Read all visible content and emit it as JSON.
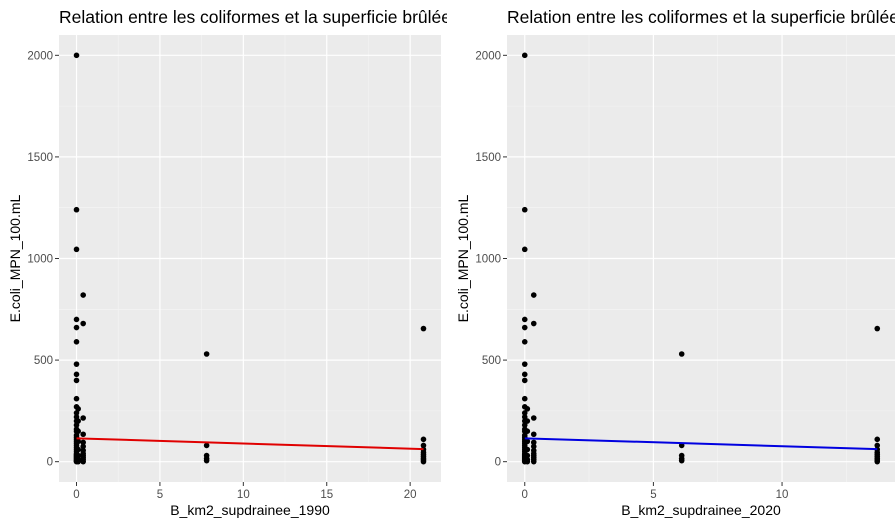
{
  "chart_data": [
    {
      "type": "scatter",
      "title": "Relation entre les coliformes et la superficie brûlée",
      "xlabel": "B_km2_supdrainee_1990",
      "ylabel": "E.coli_MPN_100.mL",
      "xlim": [
        -1.05,
        21.85
      ],
      "ylim": [
        -100,
        2100
      ],
      "xticks": [
        0,
        5,
        10,
        15,
        20
      ],
      "yticks": [
        0,
        500,
        1000,
        1500,
        2000
      ],
      "grid": true,
      "trend_line": {
        "x": [
          0,
          20.8
        ],
        "y": [
          115,
          62
        ],
        "color": "#e00000"
      },
      "points": {
        "x": [
          0,
          0,
          0,
          0,
          0,
          0,
          0,
          0,
          0,
          0,
          0,
          0,
          0,
          0,
          0,
          0,
          0,
          0,
          0,
          0,
          0,
          0,
          0,
          0,
          0,
          0,
          0,
          0,
          0,
          0,
          0,
          0,
          0,
          0,
          0,
          0,
          0.1,
          0.1,
          0.1,
          0.1,
          0.1,
          0.1,
          0.1,
          0.1,
          0.4,
          0.4,
          0.4,
          0.4,
          0.4,
          0.4,
          0.4,
          0.4,
          0.4,
          0.4,
          0.4,
          0.4,
          7.8,
          7.8,
          7.8,
          7.8,
          7.8,
          20.8,
          20.8,
          20.8,
          20.8,
          20.8,
          20.8,
          20.8,
          20.8,
          20.8,
          20.8
        ],
        "y": [
          2000,
          1240,
          1045,
          700,
          660,
          590,
          480,
          430,
          400,
          310,
          270,
          240,
          220,
          200,
          180,
          160,
          150,
          130,
          120,
          110,
          100,
          90,
          80,
          70,
          60,
          50,
          40,
          35,
          30,
          25,
          20,
          15,
          10,
          5,
          2,
          0,
          260,
          200,
          150,
          100,
          60,
          30,
          10,
          0,
          820,
          680,
          215,
          135,
          95,
          75,
          55,
          40,
          30,
          20,
          10,
          0,
          530,
          80,
          30,
          15,
          5,
          655,
          110,
          80,
          60,
          45,
          35,
          25,
          15,
          8,
          0
        ]
      }
    },
    {
      "type": "scatter",
      "title": "Relation entre les coliformes et la superficie brûlée",
      "xlabel": "B_km2_supdrainee_2020",
      "ylabel": "E.coli_MPN_100.mL",
      "xlim": [
        -0.69,
        14.39
      ],
      "ylim": [
        -100,
        2100
      ],
      "xticks": [
        0,
        5,
        10
      ],
      "yticks": [
        0,
        500,
        1000,
        1500,
        2000
      ],
      "grid": true,
      "trend_line": {
        "x": [
          0,
          13.7
        ],
        "y": [
          115,
          62
        ],
        "color": "#0000e0"
      },
      "points": {
        "x": [
          0,
          0,
          0,
          0,
          0,
          0,
          0,
          0,
          0,
          0,
          0,
          0,
          0,
          0,
          0,
          0,
          0,
          0,
          0,
          0,
          0,
          0,
          0,
          0,
          0,
          0,
          0,
          0,
          0,
          0,
          0,
          0,
          0,
          0,
          0,
          0,
          0.1,
          0.1,
          0.1,
          0.1,
          0.1,
          0.1,
          0.1,
          0.1,
          0.35,
          0.35,
          0.35,
          0.35,
          0.35,
          0.35,
          0.35,
          0.35,
          0.35,
          0.35,
          0.35,
          0.35,
          6.1,
          6.1,
          6.1,
          6.1,
          6.1,
          13.7,
          13.7,
          13.7,
          13.7,
          13.7,
          13.7,
          13.7,
          13.7,
          13.7,
          13.7
        ],
        "y": [
          2000,
          1240,
          1045,
          700,
          660,
          590,
          480,
          430,
          400,
          310,
          270,
          240,
          220,
          200,
          180,
          160,
          150,
          130,
          120,
          110,
          100,
          90,
          80,
          70,
          60,
          50,
          40,
          35,
          30,
          25,
          20,
          15,
          10,
          5,
          2,
          0,
          260,
          200,
          150,
          100,
          60,
          30,
          10,
          0,
          820,
          680,
          215,
          135,
          95,
          75,
          55,
          40,
          30,
          20,
          10,
          0,
          530,
          80,
          30,
          15,
          5,
          655,
          110,
          80,
          60,
          45,
          35,
          25,
          15,
          8,
          0
        ]
      }
    }
  ]
}
